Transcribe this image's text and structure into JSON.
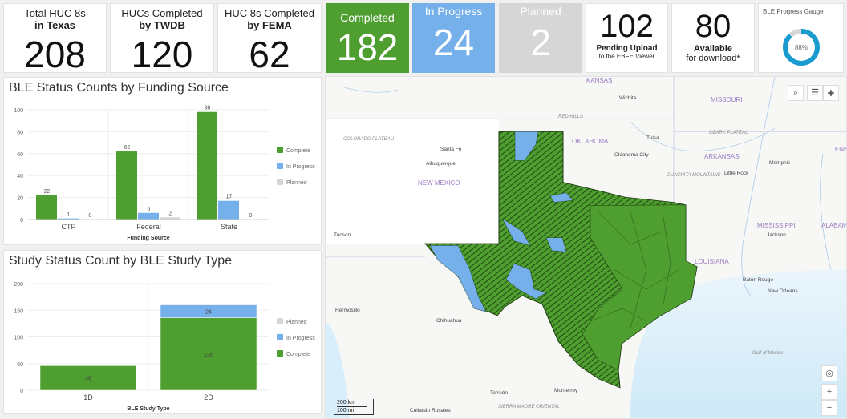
{
  "indicators": [
    {
      "title": "Total HUC 8s",
      "title2": "in Texas",
      "value": "208"
    },
    {
      "title": "HUCs Completed",
      "title2": "by TWDB",
      "value": "120"
    },
    {
      "title": "HUC 8s Completed",
      "title2": "by FEMA",
      "value": "62"
    }
  ],
  "status_tiles": [
    {
      "label": "Completed",
      "value": "182",
      "color": "#4e9f2f"
    },
    {
      "label": "In Progress",
      "value": "24",
      "color": "#75b0ea"
    },
    {
      "label": "Planned",
      "value": "2",
      "color": "#d6d6d6"
    }
  ],
  "pending": {
    "value": "102",
    "line1": "Pending Upload",
    "line2": "to the EBFE Viewer"
  },
  "available": {
    "value": "80",
    "line1": "Available",
    "line2": "for download*"
  },
  "gauge": {
    "title": "BLE Progress Gauge",
    "percent": 88,
    "label": "88%",
    "color": "#1a9bd0"
  },
  "chart_data": [
    {
      "type": "bar",
      "title": "BLE Status Counts by Funding Source",
      "xlabel": "Funding Source",
      "ylabel": "",
      "ylim": [
        0,
        100
      ],
      "yticks": [
        0,
        20,
        40,
        60,
        80,
        100
      ],
      "categories": [
        "CTP",
        "Federal",
        "State"
      ],
      "series": [
        {
          "name": "Complete",
          "values": [
            22,
            62,
            98
          ],
          "color": "#4e9f2f"
        },
        {
          "name": "In Progress",
          "values": [
            1,
            6,
            17
          ],
          "color": "#75b0ea"
        },
        {
          "name": "Planned",
          "values": [
            0,
            2,
            0
          ],
          "color": "#d6d6d6"
        }
      ],
      "legend": "right",
      "grid": true
    },
    {
      "type": "bar",
      "stacked": true,
      "title": "Study Status Count by BLE Study Type",
      "xlabel": "BLE Study Type",
      "ylabel": "",
      "ylim": [
        0,
        200
      ],
      "yticks": [
        0,
        50,
        100,
        150,
        200
      ],
      "categories": [
        "1D",
        "2D"
      ],
      "series": [
        {
          "name": "Complete",
          "values": [
            46,
            136
          ],
          "color": "#4e9f2f"
        },
        {
          "name": "In Progress",
          "values": [
            0,
            24
          ],
          "color": "#75b0ea"
        },
        {
          "name": "Planned",
          "values": [
            0,
            2
          ],
          "color": "#d6d6d6"
        }
      ],
      "legend_order": [
        "Planned",
        "In Progress",
        "Complete"
      ],
      "legend": "right",
      "grid": true
    }
  ],
  "map": {
    "labels": [
      "KANSAS",
      "MISSOURI",
      "OKLAHOMA",
      "ARKANSAS",
      "NEW MEXICO",
      "MISSISSIPPI",
      "LOUISIANA",
      "ALABAMA",
      "TENN"
    ],
    "cities": [
      "Wichita",
      "Tulsa",
      "Oklahoma City",
      "Santa Fe",
      "Albuquerque",
      "Little Rock",
      "Memphis",
      "Jackson",
      "Baton Rouge",
      "New Orleans",
      "Tucson",
      "Hermosillo",
      "Chihuahua",
      "Torreón",
      "Monterrey",
      "Culiacán Rosales"
    ],
    "features": [
      "COLORADO PLATEAU",
      "RED HILLS",
      "OZARK PLATEAU",
      "OUACHITA MOUNTAINS",
      "SIERRA MADRE ORIENTAL",
      "Gulf of Mexico"
    ],
    "scale": [
      "200 km",
      "100 mi"
    ],
    "fill_complete": "#4e9f2f",
    "fill_progress": "#75b0ea"
  }
}
